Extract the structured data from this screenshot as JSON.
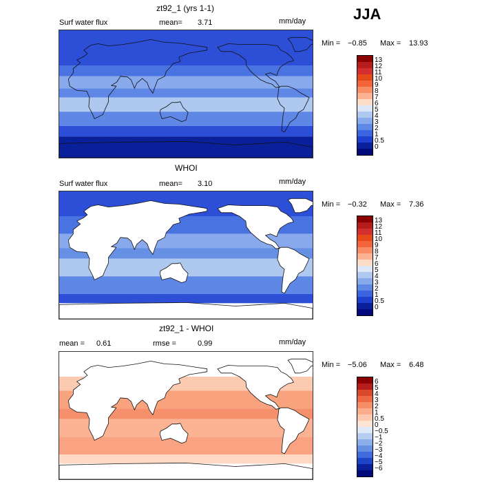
{
  "season": "JJA",
  "panels": [
    {
      "title": "zt92_1 (yrs 1-1)",
      "field": "Surf water flux",
      "stat1_label": "mean=",
      "stat1_value": "3.71",
      "stat2_label": "",
      "stat2_value": "",
      "units": "mm/day",
      "min_label": "Min =",
      "min_value": "−0.85",
      "max_label": "Max =",
      "max_value": "13.93",
      "colorbar": {
        "labels": [
          "13",
          "12",
          "11",
          "10",
          "9",
          "8",
          "7",
          "6",
          "5",
          "4",
          "3",
          "2",
          "1",
          "0.5",
          "0"
        ],
        "colors": [
          "#8b0000",
          "#b71c1c",
          "#d32f2f",
          "#e64a19",
          "#f4643a",
          "#f98e66",
          "#fbb394",
          "#fddcc6",
          "#dce7f7",
          "#aec8ef",
          "#88a9eb",
          "#5f87e6",
          "#3a64e0",
          "#1f3fcf",
          "#0a1f9a",
          "#000a7a"
        ]
      }
    },
    {
      "title": "WHOI",
      "field": "Surf water flux",
      "stat1_label": "mean=",
      "stat1_value": "3.10",
      "stat2_label": "",
      "stat2_value": "",
      "units": "mm/day",
      "min_label": "Min =",
      "min_value": "−0.32",
      "max_label": "Max =",
      "max_value": "7.36",
      "colorbar": {
        "labels": [
          "13",
          "12",
          "11",
          "10",
          "9",
          "8",
          "7",
          "6",
          "5",
          "4",
          "3",
          "2",
          "1",
          "0.5",
          "0"
        ],
        "colors": [
          "#8b0000",
          "#b71c1c",
          "#d32f2f",
          "#e64a19",
          "#f4643a",
          "#f98e66",
          "#fbb394",
          "#fddcc6",
          "#dce7f7",
          "#aec8ef",
          "#88a9eb",
          "#5f87e6",
          "#3a64e0",
          "#1f3fcf",
          "#0a1f9a",
          "#000a7a"
        ]
      }
    },
    {
      "title": "zt92_1 - WHOI",
      "field": "",
      "stat1_label": "mean =",
      "stat1_value": "0.61",
      "stat2_label": "rmse =",
      "stat2_value": "0.99",
      "units": "mm/day",
      "min_label": "Min =",
      "min_value": "−5.06",
      "max_label": "Max =",
      "max_value": "6.48",
      "colorbar": {
        "labels": [
          "6",
          "5",
          "4",
          "3",
          "2",
          "1",
          "0.5",
          "0",
          "−0.5",
          "−1",
          "−2",
          "−3",
          "−4",
          "−5",
          "−6"
        ],
        "colors": [
          "#8b0000",
          "#b71c1c",
          "#d84a2a",
          "#ee6a45",
          "#f88e68",
          "#fbae8e",
          "#fcc9b0",
          "#fde4d5",
          "#dfe9f7",
          "#b7cdf0",
          "#8eaeea",
          "#6690e4",
          "#3f6bdc",
          "#1e44c8",
          "#0a1f9a",
          "#000a7a"
        ]
      }
    }
  ]
}
